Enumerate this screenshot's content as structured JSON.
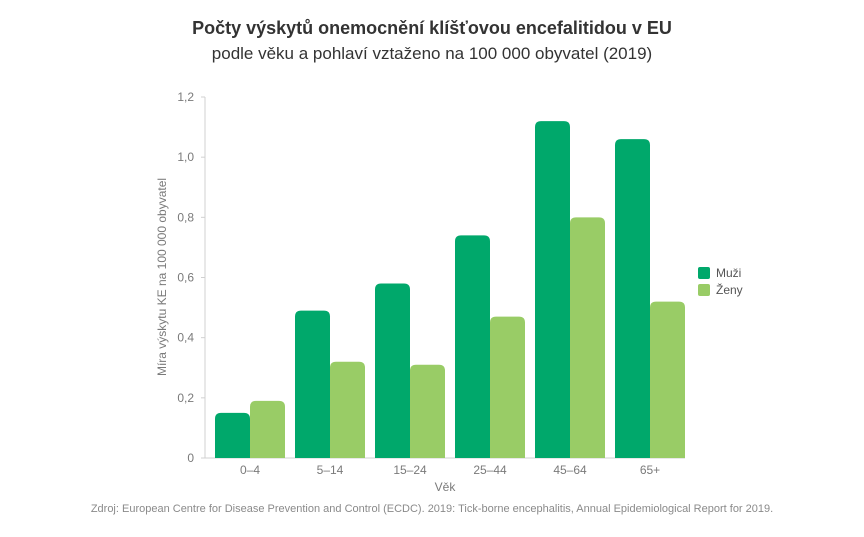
{
  "chart_data": {
    "type": "bar",
    "title": "Počty výskytů onemocnění klíšťovou encefalitidou v EU",
    "subtitle": "podle věku a pohlaví vztaženo na 100 000 obyvatel (2019)",
    "xlabel": "Věk",
    "ylabel": "Míra výskytu KE na 100 000 obyvatel",
    "categories": [
      "0–4",
      "5–14",
      "15–24",
      "25–44",
      "45–64",
      "65+"
    ],
    "series": [
      {
        "name": "Muži",
        "color": "#00a86b",
        "values": [
          0.15,
          0.49,
          0.58,
          0.74,
          1.12,
          1.06
        ]
      },
      {
        "name": "Ženy",
        "color": "#99cc66",
        "values": [
          0.19,
          0.32,
          0.31,
          0.47,
          0.8,
          0.52
        ]
      }
    ],
    "ylim": [
      0,
      1.2
    ],
    "yticks": [
      "0",
      "0,2",
      "0,4",
      "0,6",
      "0,8",
      "1,0",
      "1,2"
    ],
    "grid": false,
    "legend": "right",
    "source": "Zdroj: European Centre for Disease Prevention and Control (ECDC). 2019: Tick-borne encephalitis, Annual Epidemiological Report for 2019."
  }
}
